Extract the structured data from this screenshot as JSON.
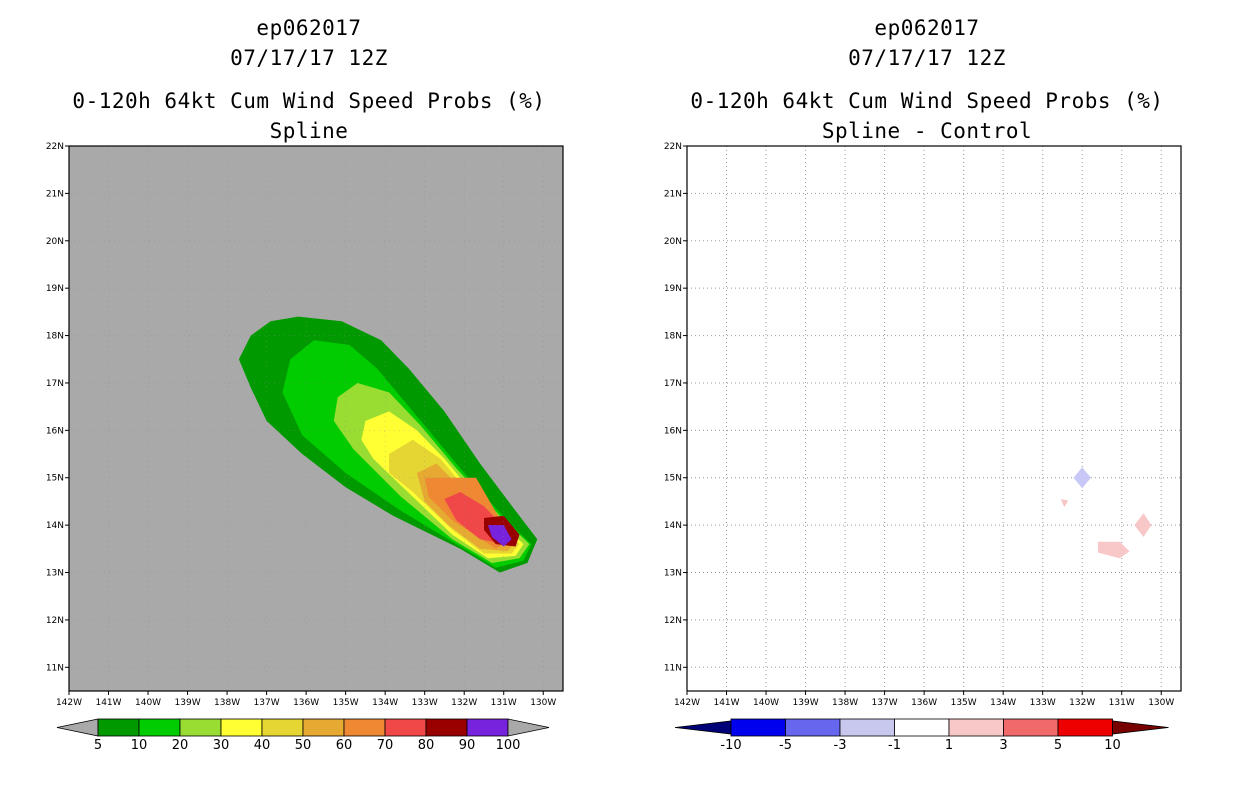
{
  "chart_data": [
    {
      "type": "contour",
      "storm_id": "ep062017",
      "datetime": "07/17/17 12Z",
      "title": "0-120h 64kt Cum Wind Speed Probs (%)",
      "subtitle": "Spline",
      "xlim": [
        -142,
        -129.5
      ],
      "ylim": [
        10.5,
        22
      ],
      "x_ticks": [
        -142,
        -141,
        -140,
        -139,
        -138,
        -137,
        -136,
        -135,
        -134,
        -133,
        -132,
        -131,
        -130
      ],
      "x_tick_labels": [
        "142W",
        "141W",
        "140W",
        "139W",
        "138W",
        "137W",
        "136W",
        "135W",
        "134W",
        "133W",
        "132W",
        "131W",
        "130W"
      ],
      "y_ticks": [
        11,
        12,
        13,
        14,
        15,
        16,
        17,
        18,
        19,
        20,
        21,
        22
      ],
      "y_tick_labels": [
        "11N",
        "12N",
        "13N",
        "14N",
        "15N",
        "16N",
        "17N",
        "18N",
        "19N",
        "20N",
        "21N",
        "22N"
      ],
      "background_color": "#a9a9a9",
      "colorbar": {
        "labels": [
          "5",
          "10",
          "20",
          "30",
          "40",
          "50",
          "60",
          "70",
          "80",
          "90",
          "100"
        ],
        "colors": [
          "#009900",
          "#00cc00",
          "#99dd33",
          "#ffff33",
          "#e6d633",
          "#e6aa33",
          "#ee8833",
          "#f04848",
          "#990000",
          "#7722dd"
        ],
        "end_color": "#a9a9a9"
      },
      "contours": [
        {
          "level": 5,
          "color": "#009900",
          "points": [
            [
              -137.7,
              17.5
            ],
            [
              -137.4,
              18.0
            ],
            [
              -136.9,
              18.3
            ],
            [
              -136.2,
              18.4
            ],
            [
              -135.1,
              18.3
            ],
            [
              -134.1,
              17.9
            ],
            [
              -133.4,
              17.3
            ],
            [
              -132.5,
              16.4
            ],
            [
              -131.6,
              15.3
            ],
            [
              -130.7,
              14.3
            ],
            [
              -130.15,
              13.7
            ],
            [
              -130.4,
              13.2
            ],
            [
              -131.1,
              13.0
            ],
            [
              -132.1,
              13.5
            ],
            [
              -133.8,
              14.2
            ],
            [
              -135.0,
              14.8
            ],
            [
              -136.1,
              15.5
            ],
            [
              -137.0,
              16.2
            ],
            [
              -137.4,
              16.9
            ]
          ]
        },
        {
          "level": 10,
          "color": "#00cc00",
          "points": [
            [
              -136.6,
              16.8
            ],
            [
              -136.4,
              17.5
            ],
            [
              -135.8,
              17.9
            ],
            [
              -134.9,
              17.8
            ],
            [
              -134.2,
              17.3
            ],
            [
              -133.5,
              16.6
            ],
            [
              -132.7,
              15.8
            ],
            [
              -131.8,
              14.9
            ],
            [
              -130.8,
              14.0
            ],
            [
              -130.3,
              13.6
            ],
            [
              -130.5,
              13.25
            ],
            [
              -131.2,
              13.1
            ],
            [
              -132.2,
              13.6
            ],
            [
              -133.6,
              14.3
            ],
            [
              -135.0,
              15.1
            ],
            [
              -136.1,
              15.9
            ]
          ]
        },
        {
          "level": 20,
          "color": "#99dd33",
          "points": [
            [
              -135.2,
              16.7
            ],
            [
              -134.7,
              17.0
            ],
            [
              -133.9,
              16.8
            ],
            [
              -133.1,
              16.1
            ],
            [
              -132.2,
              15.2
            ],
            [
              -131.1,
              14.2
            ],
            [
              -130.35,
              13.6
            ],
            [
              -130.6,
              13.3
            ],
            [
              -131.3,
              13.2
            ],
            [
              -132.3,
              13.7
            ],
            [
              -133.6,
              14.6
            ],
            [
              -134.8,
              15.6
            ],
            [
              -135.3,
              16.2
            ]
          ]
        },
        {
          "level": 30,
          "color": "#ffff33",
          "points": [
            [
              -134.5,
              16.2
            ],
            [
              -133.9,
              16.4
            ],
            [
              -133.2,
              16.0
            ],
            [
              -132.5,
              15.4
            ],
            [
              -131.5,
              14.4
            ],
            [
              -130.5,
              13.6
            ],
            [
              -130.7,
              13.35
            ],
            [
              -131.4,
              13.3
            ],
            [
              -132.3,
              13.8
            ],
            [
              -133.3,
              14.6
            ],
            [
              -134.3,
              15.4
            ],
            [
              -134.6,
              15.8
            ]
          ]
        },
        {
          "level": 40,
          "color": "#e6d633",
          "points": [
            [
              -133.9,
              15.5
            ],
            [
              -133.3,
              15.8
            ],
            [
              -132.6,
              15.4
            ],
            [
              -131.6,
              14.4
            ],
            [
              -130.6,
              13.6
            ],
            [
              -130.8,
              13.4
            ],
            [
              -131.5,
              13.4
            ],
            [
              -132.3,
              13.9
            ],
            [
              -133.3,
              14.7
            ],
            [
              -133.9,
              15.1
            ]
          ]
        },
        {
          "level": 50,
          "color": "#e6aa33",
          "points": [
            [
              -133.2,
              15.1
            ],
            [
              -132.7,
              15.3
            ],
            [
              -132.1,
              14.8
            ],
            [
              -131.4,
              14.3
            ],
            [
              -130.7,
              13.65
            ],
            [
              -130.9,
              13.45
            ],
            [
              -131.6,
              13.5
            ],
            [
              -132.4,
              14.0
            ],
            [
              -133.0,
              14.5
            ]
          ]
        },
        {
          "level": 60,
          "color": "#ee8833",
          "points": [
            [
              -133.0,
              15.0
            ],
            [
              -131.7,
              15.0
            ],
            [
              -130.8,
              13.7
            ],
            [
              -131.2,
              13.5
            ],
            [
              -132.3,
              14.1
            ],
            [
              -132.9,
              14.6
            ]
          ]
        },
        {
          "level": 70,
          "color": "#f04848",
          "points": [
            [
              -132.5,
              14.55
            ],
            [
              -132.1,
              14.7
            ],
            [
              -131.5,
              14.4
            ],
            [
              -130.8,
              13.8
            ],
            [
              -130.95,
              13.6
            ],
            [
              -131.6,
              13.7
            ],
            [
              -132.2,
              14.1
            ]
          ]
        },
        {
          "level": 80,
          "color": "#990000",
          "points": [
            [
              -131.5,
              14.15
            ],
            [
              -131.0,
              14.2
            ],
            [
              -130.6,
              13.8
            ],
            [
              -130.7,
              13.55
            ],
            [
              -131.2,
              13.6
            ],
            [
              -131.5,
              13.9
            ]
          ]
        },
        {
          "level": 90,
          "color": "#7722dd",
          "points": [
            [
              -131.4,
              14.0
            ],
            [
              -131.0,
              14.0
            ],
            [
              -130.8,
              13.7
            ],
            [
              -131.0,
              13.55
            ],
            [
              -131.3,
              13.75
            ]
          ]
        }
      ]
    },
    {
      "type": "contour",
      "storm_id": "ep062017",
      "datetime": "07/17/17 12Z",
      "title": "0-120h 64kt Cum Wind Speed Probs (%)",
      "subtitle": "Spline - Control",
      "xlim": [
        -142,
        -129.5
      ],
      "ylim": [
        10.5,
        22
      ],
      "x_ticks": [
        -142,
        -141,
        -140,
        -139,
        -138,
        -137,
        -136,
        -135,
        -134,
        -133,
        -132,
        -131,
        -130
      ],
      "x_tick_labels": [
        "142W",
        "141W",
        "140W",
        "139W",
        "138W",
        "137W",
        "136W",
        "135W",
        "134W",
        "133W",
        "132W",
        "131W",
        "130W"
      ],
      "y_ticks": [
        11,
        12,
        13,
        14,
        15,
        16,
        17,
        18,
        19,
        20,
        21,
        22
      ],
      "y_tick_labels": [
        "11N",
        "12N",
        "13N",
        "14N",
        "15N",
        "16N",
        "17N",
        "18N",
        "19N",
        "20N",
        "21N",
        "22N"
      ],
      "grid": true,
      "background_color": "#ffffff",
      "colorbar": {
        "labels": [
          "-10",
          "-5",
          "-3",
          "-1",
          "1",
          "3",
          "5",
          "10"
        ],
        "colors": [
          "#0000ee",
          "#6666ee",
          "#c8c8ee",
          "#ffffff",
          "#f8c8c8",
          "#f06a6a",
          "#ee0000"
        ],
        "end_color_low": "#000077",
        "end_color_high": "#770000"
      },
      "contours": [
        {
          "level": -1,
          "color": "#c8c8f6",
          "points": [
            [
              -132.0,
              15.22
            ],
            [
              -131.78,
              15.0
            ],
            [
              -132.0,
              14.78
            ],
            [
              -132.22,
              15.0
            ]
          ]
        },
        {
          "level": 1,
          "color": "#f8c8c8",
          "points": [
            [
              -132.55,
              14.55
            ],
            [
              -132.35,
              14.52
            ],
            [
              -132.45,
              14.38
            ]
          ]
        },
        {
          "level": 1,
          "color": "#f8c8c8",
          "points": [
            [
              -130.45,
              14.25
            ],
            [
              -130.25,
              14.0
            ],
            [
              -130.45,
              13.75
            ],
            [
              -130.68,
              14.0
            ]
          ]
        },
        {
          "level": 1,
          "color": "#f8c8c8",
          "points": [
            [
              -131.6,
              13.65
            ],
            [
              -131.05,
              13.65
            ],
            [
              -130.8,
              13.45
            ],
            [
              -131.05,
              13.3
            ],
            [
              -131.6,
              13.42
            ]
          ]
        }
      ]
    }
  ]
}
